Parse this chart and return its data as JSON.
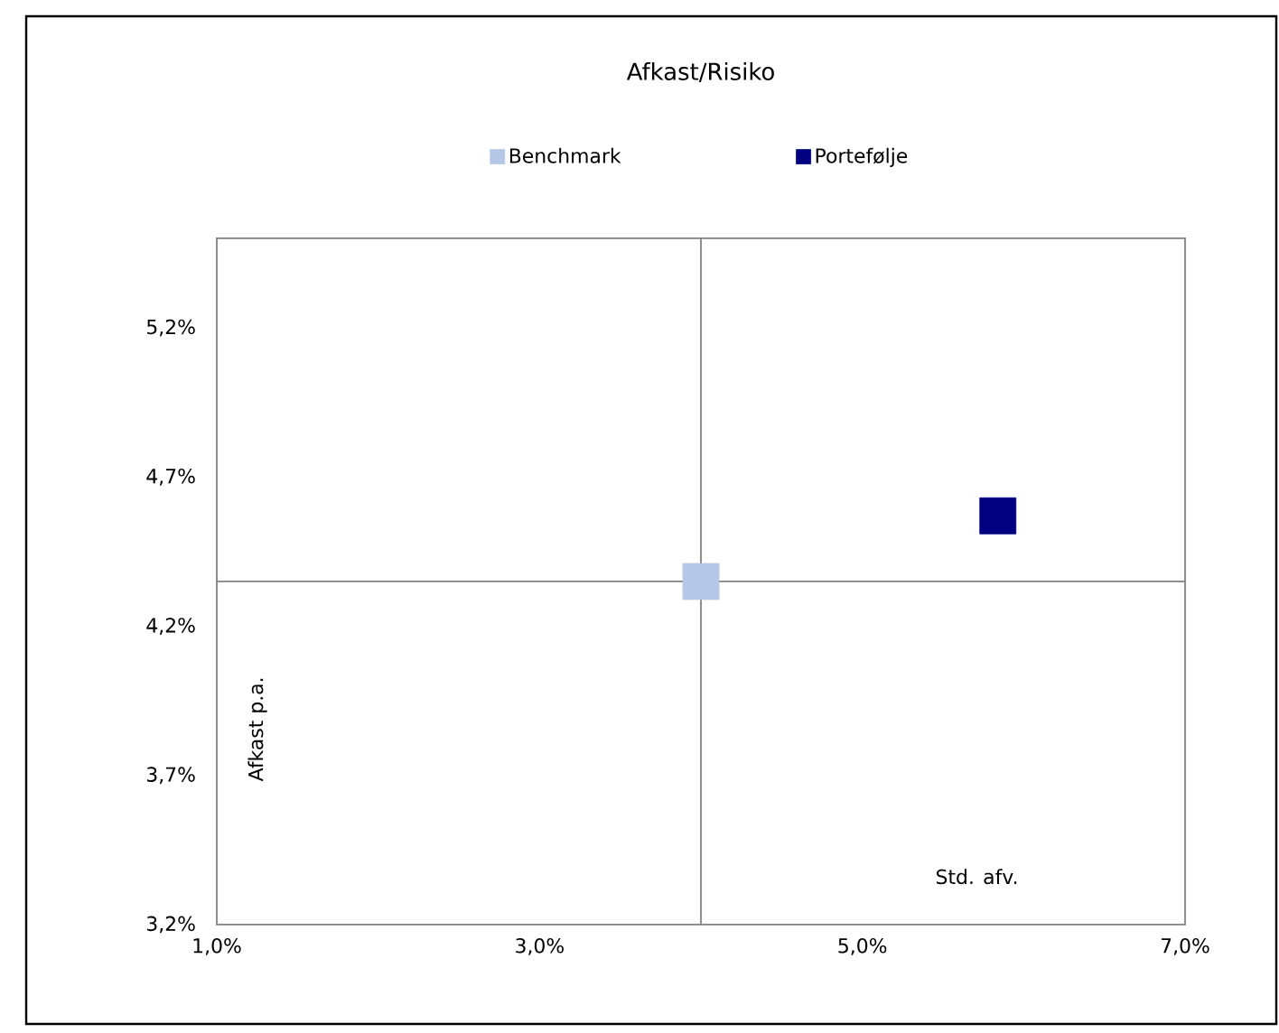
{
  "chart_data": {
    "type": "scatter",
    "title": "Afkast/Risiko",
    "xlabel": "Std. afv.",
    "ylabel": "Afkast p.a.",
    "marker": "square",
    "legend": "top",
    "xlim": [
      1.0,
      7.0
    ],
    "ylim": [
      3.2,
      5.5
    ],
    "xticks": [
      {
        "value": 1.0,
        "label": "1,0%"
      },
      {
        "value": 3.0,
        "label": "3,0%"
      },
      {
        "value": 5.0,
        "label": "5,0%"
      },
      {
        "value": 7.0,
        "label": "7,0%"
      }
    ],
    "yticks": [
      {
        "value": 3.2,
        "label": "3,2%"
      },
      {
        "value": 3.7,
        "label": "3,7%"
      },
      {
        "value": 4.2,
        "label": "4,2%"
      },
      {
        "value": 4.7,
        "label": "4,7%"
      },
      {
        "value": 5.2,
        "label": "5,2%"
      }
    ],
    "ref_lines": [
      {
        "axis": "x",
        "value": 4.0,
        "color": "#808080"
      },
      {
        "axis": "y",
        "value": 4.35,
        "color": "#808080"
      }
    ],
    "series": [
      {
        "name": "Benchmark",
        "color": "#b4c7e7",
        "x": [
          4.0
        ],
        "values": [
          4.35
        ]
      },
      {
        "name": "Portefølje",
        "color": "#000080",
        "x": [
          5.84
        ],
        "values": [
          4.57
        ]
      }
    ]
  }
}
